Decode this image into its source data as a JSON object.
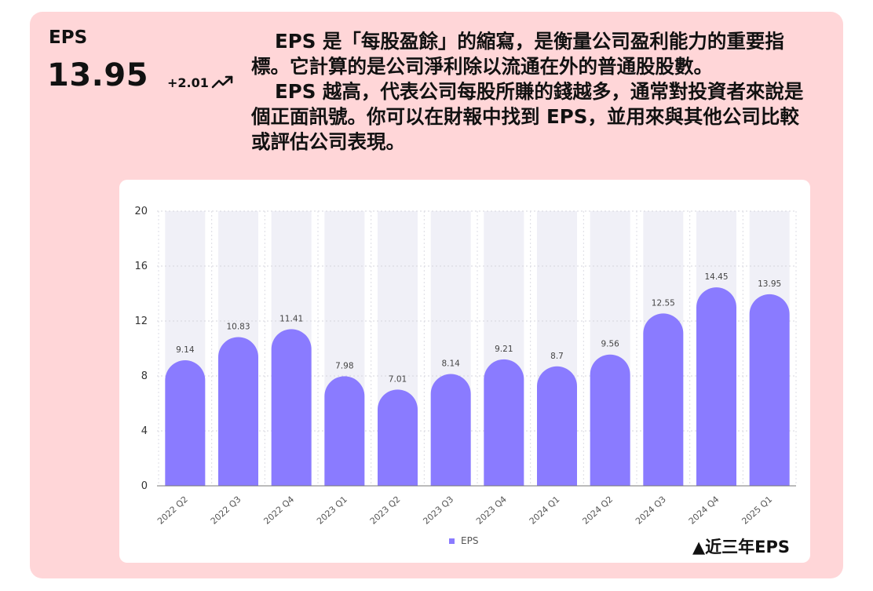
{
  "header": {
    "label": "EPS",
    "value": "13.95",
    "delta": "+2.01"
  },
  "description": {
    "p1": "EPS 是「每股盈餘」的縮寫，是衡量公司盈利能力的重要指標。它計算的是公司淨利除以流通在外的普通股股數。",
    "p2": "EPS 越高，代表公司每股所賺的錢越多，通常對投資者來說是個正面訊號。你可以在財報中找到 EPS，並用來與其他公司比較或評估公司表現。"
  },
  "caption": "▲近三年EPS",
  "colors": {
    "card_bg": "#ffd6d8",
    "bar": "#8a7bff",
    "bar_track": "#f0f0f7"
  },
  "icons": {
    "trend": "trending-up-icon"
  },
  "chart_data": {
    "type": "bar",
    "categories": [
      "2022 Q2",
      "2022 Q3",
      "2022 Q4",
      "2023 Q1",
      "2023 Q2",
      "2023 Q3",
      "2023 Q4",
      "2024 Q1",
      "2024 Q2",
      "2024 Q3",
      "2024 Q4",
      "2025 Q1"
    ],
    "series": [
      {
        "name": "EPS",
        "values": [
          9.14,
          10.83,
          11.41,
          7.98,
          7.01,
          8.14,
          9.21,
          8.7,
          9.56,
          12.55,
          14.45,
          13.95
        ]
      }
    ],
    "ylim": [
      0,
      20
    ],
    "yticks": [
      0,
      4,
      8,
      12,
      16,
      20
    ],
    "grid": true,
    "legend": "bottom-center"
  }
}
